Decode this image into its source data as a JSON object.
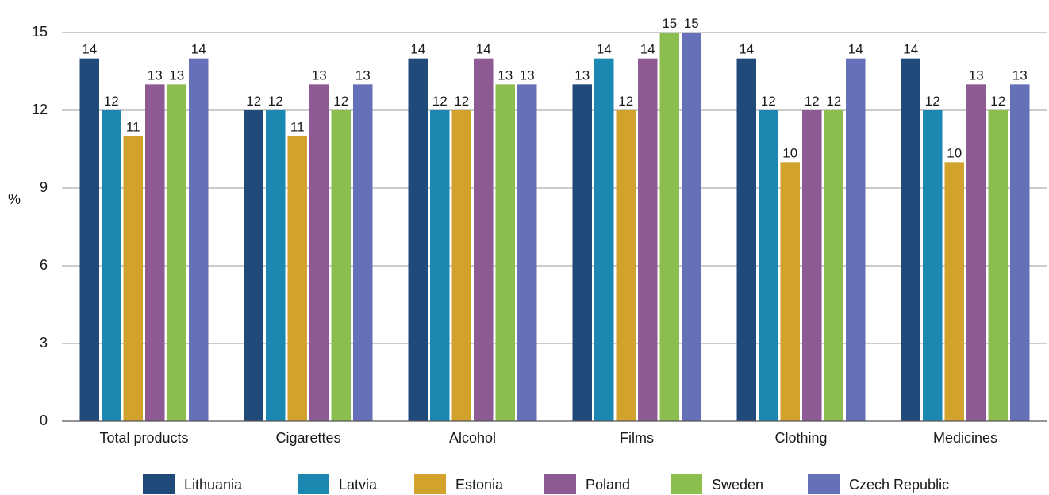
{
  "chart_data": {
    "type": "bar",
    "title": "",
    "xlabel": "",
    "ylabel": "%",
    "ylim": [
      0,
      15
    ],
    "yticks": [
      0,
      3,
      6,
      9,
      12,
      15
    ],
    "grid": true,
    "legend_position": "bottom",
    "categories": [
      "Total products",
      "Cigarettes",
      "Alcohol",
      "Films",
      "Clothing",
      "Medicines"
    ],
    "series": [
      {
        "name": "Lithuania",
        "color": "#1f4a7a",
        "values": [
          14,
          12,
          14,
          13,
          14,
          14
        ]
      },
      {
        "name": "Latvia",
        "color": "#1b88b2",
        "values": [
          12,
          12,
          12,
          14,
          12,
          12
        ]
      },
      {
        "name": "Estonia",
        "color": "#d2a32c",
        "values": [
          11,
          11,
          12,
          12,
          10,
          10
        ]
      },
      {
        "name": "Poland",
        "color": "#8e5a94",
        "values": [
          13,
          13,
          14,
          14,
          12,
          13
        ]
      },
      {
        "name": "Sweden",
        "color": "#8cbd4f",
        "values": [
          13,
          12,
          13,
          15,
          12,
          12
        ]
      },
      {
        "name": "Czech Republic",
        "color": "#6670b8",
        "values": [
          14,
          13,
          13,
          15,
          14,
          13
        ]
      }
    ]
  }
}
